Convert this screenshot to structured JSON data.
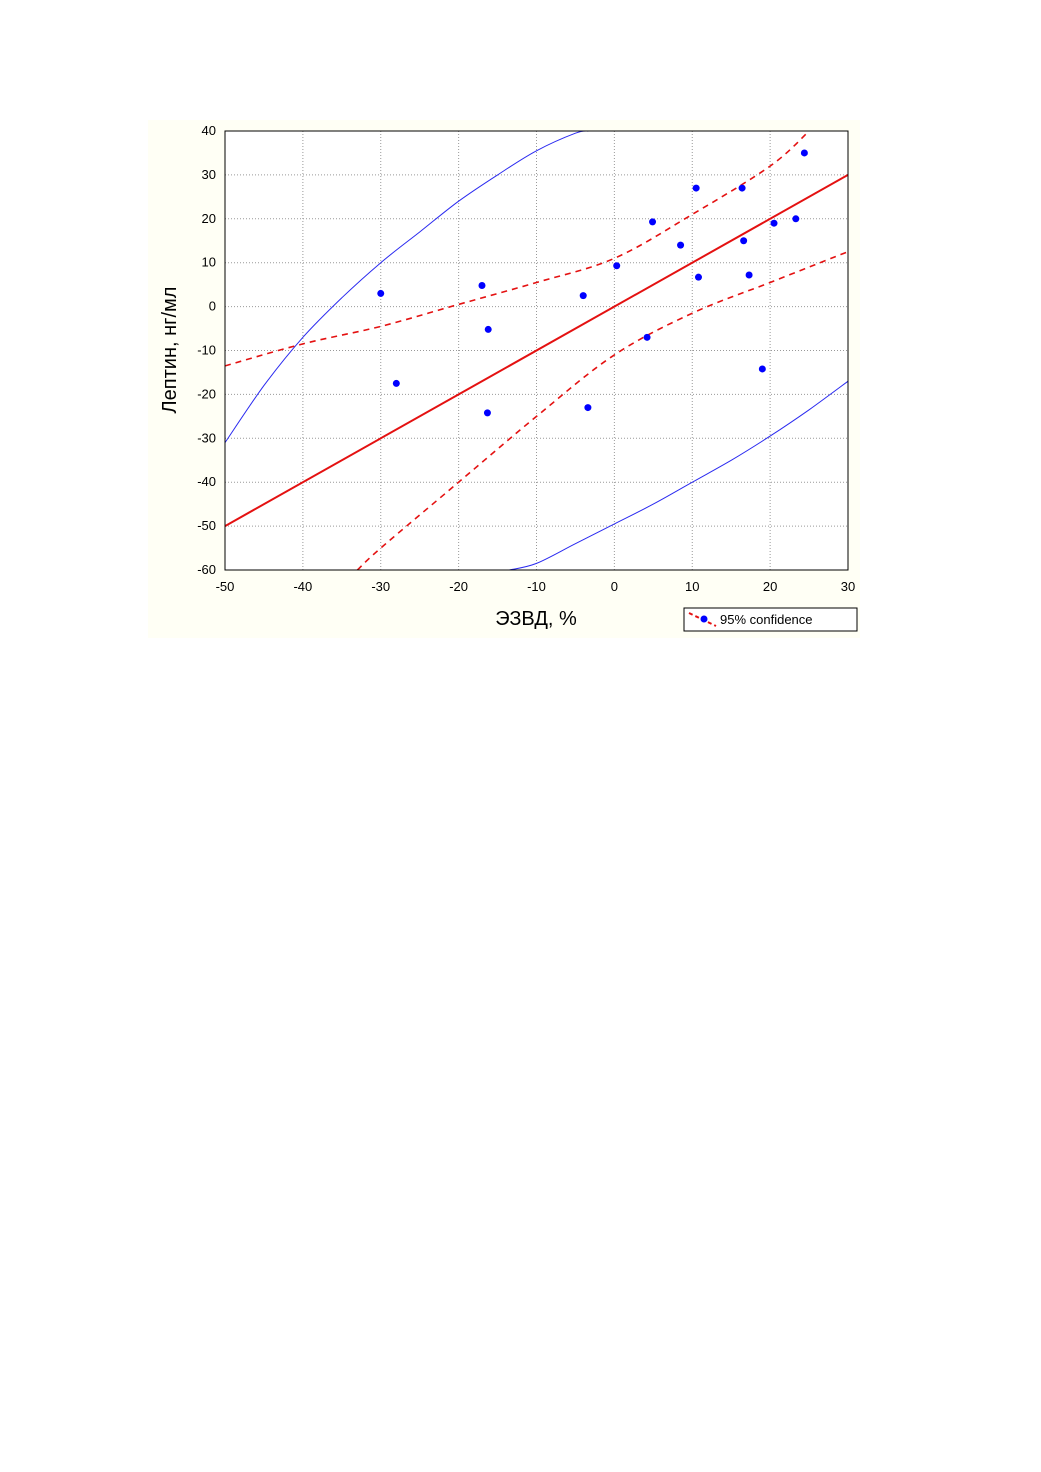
{
  "chart_data": {
    "type": "scatter",
    "xlabel": "ЭЗВД, %",
    "ylabel": "Лептин, нг/мл",
    "xlim": [
      -50,
      30
    ],
    "ylim": [
      -60,
      40
    ],
    "x_ticks": [
      -50,
      -40,
      -30,
      -20,
      -10,
      0,
      10,
      20,
      30
    ],
    "y_ticks": [
      40,
      30,
      20,
      10,
      0,
      -10,
      -20,
      -30,
      -40,
      -50,
      -60
    ],
    "x_tick_labels": [
      "-50",
      "-40",
      "-30",
      "-20",
      "-10",
      "0",
      "10",
      "20",
      "30"
    ],
    "y_tick_labels": [
      "40",
      "30",
      "20",
      "10",
      "0",
      "-10",
      "-20",
      "-30",
      "-40",
      "-50",
      "-60"
    ],
    "grid": true,
    "legend": {
      "label": "95% confidence",
      "placement": "bottom-right"
    },
    "points": [
      {
        "x": -30,
        "y": 3
      },
      {
        "x": -28,
        "y": -17.5
      },
      {
        "x": -17,
        "y": 4.8
      },
      {
        "x": -16.2,
        "y": -5.2
      },
      {
        "x": -16.3,
        "y": -24.2
      },
      {
        "x": -4,
        "y": 2.5
      },
      {
        "x": -3.4,
        "y": -23
      },
      {
        "x": 0.3,
        "y": 9.3
      },
      {
        "x": 4.2,
        "y": -7
      },
      {
        "x": 4.9,
        "y": 19.3
      },
      {
        "x": 8.5,
        "y": 14
      },
      {
        "x": 10.5,
        "y": 27
      },
      {
        "x": 10.8,
        "y": 6.7
      },
      {
        "x": 16.4,
        "y": 27
      },
      {
        "x": 16.6,
        "y": 15
      },
      {
        "x": 17.3,
        "y": 7.2
      },
      {
        "x": 19,
        "y": -14.2
      },
      {
        "x": 20.5,
        "y": 19
      },
      {
        "x": 23.3,
        "y": 20
      },
      {
        "x": 24.4,
        "y": 35
      }
    ],
    "regression": {
      "slope": 1.0,
      "intercept": 0.0
    },
    "confidence_band": {
      "upper": [
        [
          -50,
          -13.5
        ],
        [
          -40,
          -8.5
        ],
        [
          -30,
          -4.5
        ],
        [
          -20,
          0.5
        ],
        [
          -10,
          5.5
        ],
        [
          0,
          11
        ],
        [
          10,
          21
        ],
        [
          20,
          32
        ],
        [
          25,
          40
        ]
      ],
      "lower": [
        [
          -33,
          -60
        ],
        [
          -30,
          -55
        ],
        [
          -20,
          -40
        ],
        [
          -10,
          -25
        ],
        [
          0,
          -11
        ],
        [
          10,
          -1.5
        ],
        [
          20,
          5.5
        ],
        [
          30,
          12.5
        ]
      ]
    },
    "prediction_band": {
      "upper": [
        [
          -50,
          -31
        ],
        [
          -45,
          -18
        ],
        [
          -40,
          -7
        ],
        [
          -35,
          2
        ],
        [
          -30,
          10
        ],
        [
          -25,
          17
        ],
        [
          -20,
          24
        ],
        [
          -15,
          30
        ],
        [
          -10,
          35.5
        ],
        [
          -5,
          39.5
        ],
        [
          -3.3,
          40
        ]
      ],
      "lower": [
        [
          -13.5,
          -60
        ],
        [
          -10,
          -58.5
        ],
        [
          -5,
          -54
        ],
        [
          0,
          -49.5
        ],
        [
          5,
          -45
        ],
        [
          10,
          -40
        ],
        [
          15,
          -35
        ],
        [
          20,
          -29.5
        ],
        [
          25,
          -23.5
        ],
        [
          30,
          -17
        ]
      ]
    },
    "colors": {
      "point": "#0000ff",
      "regression": "#e41111",
      "confidence": "#e41111",
      "prediction": "#2a2af0",
      "panel_background": "#fffff5",
      "plot_background": "#ffffff"
    }
  }
}
